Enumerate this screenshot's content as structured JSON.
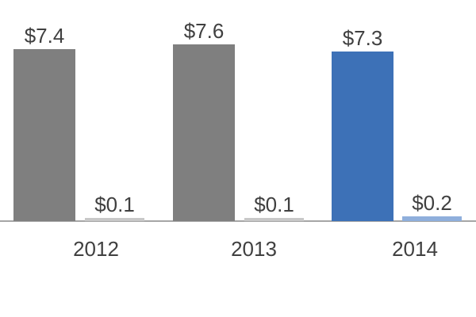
{
  "chart_data": {
    "type": "bar",
    "title": "",
    "categories": [
      "2012",
      "2013",
      "2014"
    ],
    "series": [
      {
        "name": "primary",
        "values": [
          7.4,
          7.6,
          7.3
        ],
        "labels": [
          "$7.4",
          "$7.6",
          "$7.3"
        ],
        "bar_colors": [
          "#7f7f7f",
          "#7f7f7f",
          "#3d71b7"
        ]
      },
      {
        "name": "secondary",
        "values": [
          0.1,
          0.1,
          0.2
        ],
        "labels": [
          "$0.1",
          "$0.1",
          "$0.2"
        ],
        "bar_colors": [
          "#c8c8c8",
          "#c8c8c8",
          "#8fafdc"
        ]
      }
    ],
    "legend": "none",
    "gridlines": false,
    "y_axis_visible": false,
    "highlighted_category": "2014",
    "colors": {
      "axis_line": "#a6a6a6",
      "label_text": "#404040"
    }
  }
}
